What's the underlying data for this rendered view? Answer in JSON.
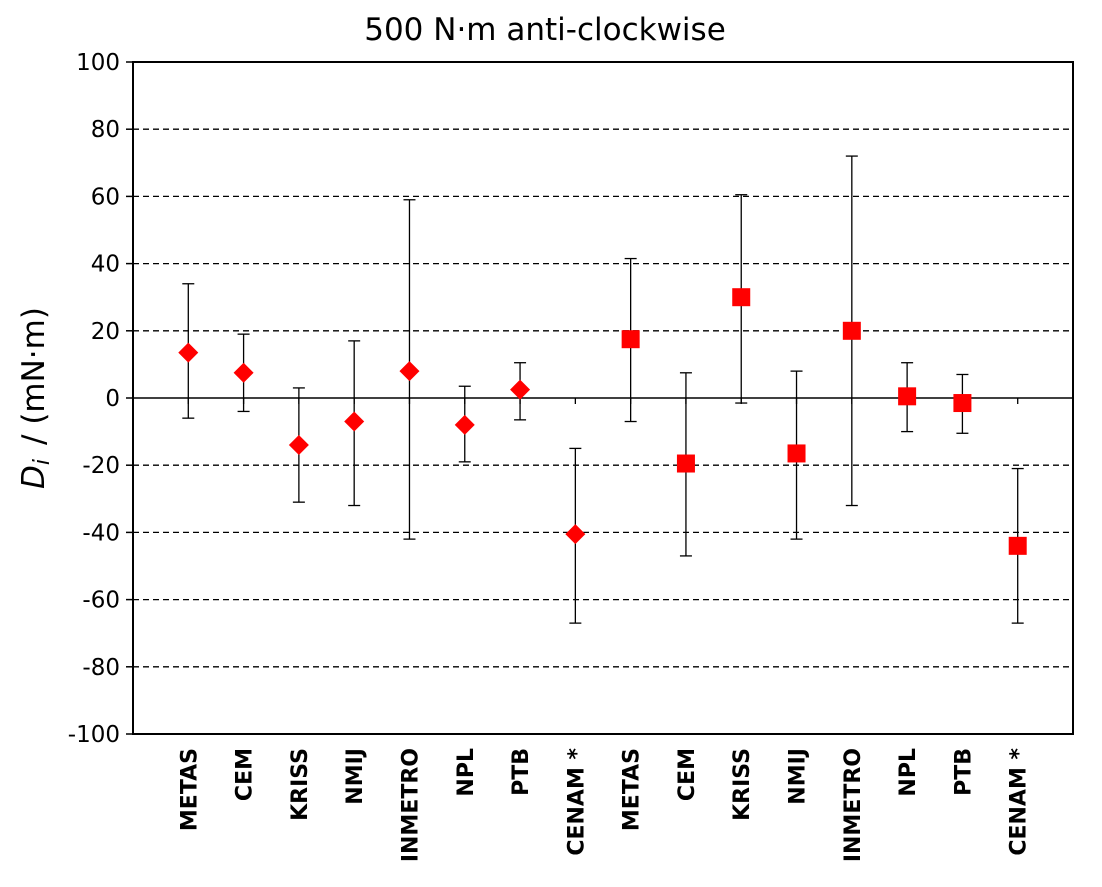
{
  "chart_data": {
    "type": "scatter",
    "title": "500 N·m anti-clockwise",
    "ylabel_symbol": "D",
    "ylabel_subscript": "i",
    "ylabel_rest": "/ (mN·m)",
    "ylim": [
      -100,
      100
    ],
    "yticks": [
      -100,
      -80,
      -60,
      -40,
      -20,
      0,
      20,
      40,
      60,
      80,
      100
    ],
    "grid": "horizontal-dashed",
    "categories": [
      "METAS",
      "CEM",
      "KRISS",
      "NMIJ",
      "INMETRO",
      "NPL",
      "PTB",
      "CENAM *",
      "METAS",
      "CEM",
      "KRISS",
      "NMIJ",
      "INMETRO",
      "NPL",
      "PTB",
      "CENAM *"
    ],
    "series": [
      {
        "marker": "diamond",
        "color": "#ff0000",
        "x_index": [
          0,
          1,
          2,
          3,
          4,
          5,
          6,
          7
        ],
        "values": [
          13.5,
          7.5,
          -14,
          -7,
          8,
          -8,
          2.5,
          -40.5
        ],
        "err_low": [
          -6,
          -4,
          -31,
          -32,
          -42,
          -19,
          -6.5,
          -67
        ],
        "err_high": [
          34,
          19,
          3,
          17,
          59,
          3.5,
          10.5,
          -15
        ]
      },
      {
        "marker": "square",
        "color": "#ff0000",
        "x_index": [
          8,
          9,
          10,
          11,
          12,
          13,
          14,
          15
        ],
        "values": [
          17.5,
          -19.5,
          30,
          -16.5,
          20,
          0.5,
          -1.5,
          -44
        ],
        "err_low": [
          -7,
          -47,
          -1.5,
          -42,
          -32,
          -10,
          -10.5,
          -67
        ],
        "err_high": [
          41.5,
          7.5,
          60.5,
          8,
          72,
          10.5,
          7,
          -21
        ]
      }
    ]
  }
}
